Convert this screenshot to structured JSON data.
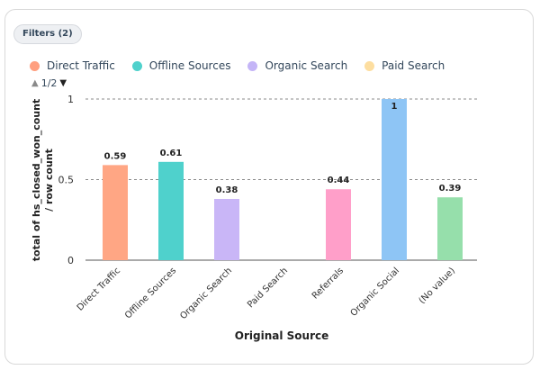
{
  "filters": {
    "label": "Filters (2)"
  },
  "legend": {
    "items": [
      {
        "label": "Direct Traffic",
        "color": "#ff9f7f"
      },
      {
        "label": "Offline Sources",
        "color": "#4fd1cc"
      },
      {
        "label": "Organic Search",
        "color": "#c4b5f7"
      },
      {
        "label": "Paid Search",
        "color": "#fddea0"
      }
    ],
    "page": "1/2",
    "up_icon": "triangle-up-icon",
    "down_icon": "triangle-down-icon"
  },
  "chart_data": {
    "type": "bar",
    "categories": [
      "Direct Traffic",
      "Offline Sources",
      "Organic Search",
      "Paid Search",
      "Referrals",
      "Organic Social",
      "(No value)"
    ],
    "values": [
      0.59,
      0.61,
      0.38,
      null,
      0.44,
      1,
      0.39
    ],
    "data_labels": [
      "0.59",
      "0.61",
      "0.38",
      "",
      "0.44",
      "1",
      "0.39"
    ],
    "colors": [
      "#ffa684",
      "#4fd1cc",
      "#c9b6f7",
      "#fddea0",
      "#ff9fc9",
      "#8ec5f5",
      "#96dfab"
    ],
    "ylabel_lines": [
      "total of hs_closed_won_count",
      "/ row count"
    ],
    "xlabel": "Original Source",
    "yticks": [
      "0",
      "0.5",
      "1"
    ],
    "ylim": [
      0,
      1
    ],
    "grid": true,
    "legend_position": "top-left"
  }
}
